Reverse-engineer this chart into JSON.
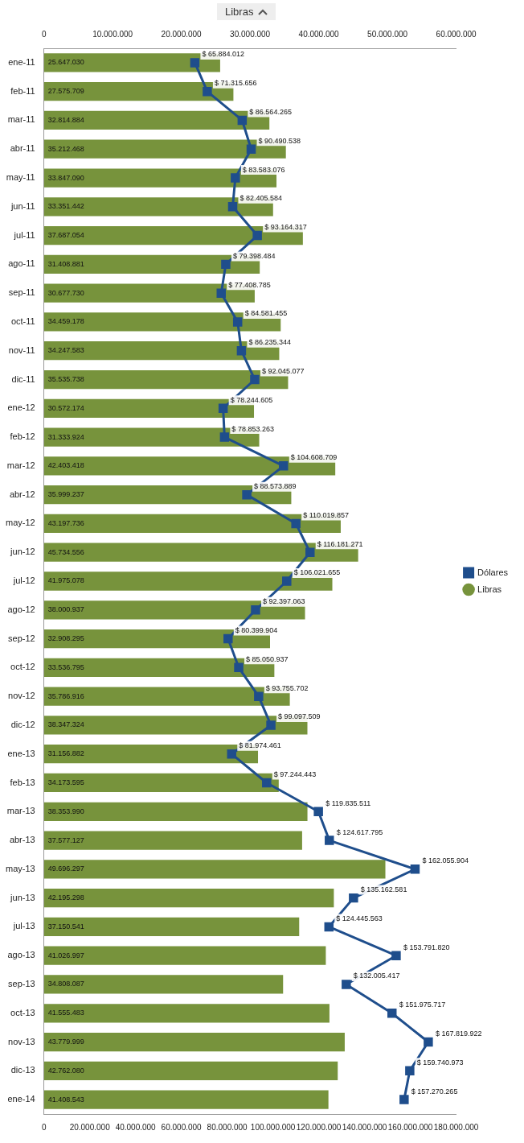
{
  "chart_data": {
    "type": "bar",
    "orientation": "horizontal",
    "annotations": [
      "Libras"
    ],
    "categories": [
      "ene-11",
      "feb-11",
      "mar-11",
      "abr-11",
      "may-11",
      "jun-11",
      "jul-11",
      "ago-11",
      "sep-11",
      "oct-11",
      "nov-11",
      "dic-11",
      "ene-12",
      "feb-12",
      "mar-12",
      "abr-12",
      "may-12",
      "jun-12",
      "jul-12",
      "ago-12",
      "sep-12",
      "oct-12",
      "nov-12",
      "dic-12",
      "ene-13",
      "feb-13",
      "mar-13",
      "abr-13",
      "may-13",
      "jun-13",
      "jul-13",
      "ago-13",
      "sep-13",
      "oct-13",
      "nov-13",
      "dic-13",
      "ene-14"
    ],
    "series": [
      {
        "name": "Libras",
        "axis": "x2",
        "color": "#77933c",
        "values": [
          25647030,
          27575709,
          32814884,
          35212468,
          33847090,
          33351442,
          37687054,
          31408881,
          30677730,
          34459178,
          34247583,
          35535738,
          30572174,
          31333924,
          42403418,
          35999237,
          43197736,
          45734556,
          41975078,
          38000937,
          32908295,
          33536795,
          35786916,
          38347324,
          31156882,
          34173595,
          38353990,
          37577127,
          49696297,
          42195298,
          37150541,
          41026997,
          34808087,
          41555483,
          43779999,
          42762080,
          41408543
        ],
        "value_labels": [
          "25.647.030",
          "27.575.709",
          "32.814.884",
          "35.212.468",
          "33.847.090",
          "33.351.442",
          "37.687.054",
          "31.408.881",
          "30.677.730",
          "34.459.178",
          "34.247.583",
          "35.535.738",
          "30.572.174",
          "31.333.924",
          "42.403.418",
          "35.999.237",
          "43.197.736",
          "45.734.556",
          "41.975.078",
          "38.000.937",
          "32.908.295",
          "33.536.795",
          "35.786.916",
          "38.347.324",
          "31.156.882",
          "34.173.595",
          "38.353.990",
          "37.577.127",
          "49.696.297",
          "42.195.298",
          "37.150.541",
          "41.026.997",
          "34.808.087",
          "41.555.483",
          "43.779.999",
          "42.762.080",
          "41.408.543"
        ]
      },
      {
        "name": "Dólares",
        "type": "line",
        "color": "#1f4e8c",
        "marker": "square",
        "line_style": "solid",
        "values": [
          65884012,
          71315656,
          86564265,
          90490538,
          83583076,
          82405584,
          93164317,
          79398484,
          77408785,
          84581455,
          86235344,
          92045077,
          78244605,
          78853263,
          104608709,
          88573889,
          110019857,
          116181271,
          106021655,
          92397063,
          80399904,
          85050937,
          93755702,
          99097509,
          81974461,
          97244443,
          119835511,
          124617795,
          162055904,
          135162581,
          124445563,
          153791820,
          132005417,
          151975717,
          167819922,
          159740973,
          157270265
        ],
        "value_labels": [
          "$ 65.884.012",
          "$ 71.315.656",
          "$ 86.564.265",
          "$ 90.490.538",
          "$ 83.583.076",
          "$ 82.405.584",
          "$ 93.164.317",
          "$ 79.398.484",
          "$ 77.408.785",
          "$ 84.581.455",
          "$ 86.235.344",
          "$ 92.045.077",
          "$ 78.244.605",
          "$ 78.853.263",
          "$ 104.608.709",
          "$ 88.573.889",
          "$ 110.019.857",
          "$ 116.181.271",
          "$ 106.021.655",
          "$ 92.397.063",
          "$ 80.399.904",
          "$ 85.050.937",
          "$ 93.755.702",
          "$ 99.097.509",
          "$ 81.974.461",
          "$ 97.244.443",
          "$ 119.835.511",
          "$ 124.617.795",
          "$ 162.055.904",
          "$ 135.162.581",
          "$ 124.445.563",
          "$ 153.791.820",
          "$ 132.005.417",
          "$ 151.975.717",
          "$ 167.819.922",
          "$ 159.740.973",
          "$ 157.270.265"
        ]
      }
    ],
    "x2lim": [
      0,
      60000000
    ],
    "x2ticks": [
      {
        "value": 0,
        "label": "0"
      },
      {
        "value": 10000000,
        "label": "10.000.000"
      },
      {
        "value": 20000000,
        "label": "20.000.000"
      },
      {
        "value": 30000000,
        "label": "30.000.000"
      },
      {
        "value": 40000000,
        "label": "40.000.000"
      },
      {
        "value": 50000000,
        "label": "50.000.000"
      },
      {
        "value": 60000000,
        "label": "60.000.000"
      }
    ],
    "xlim": [
      0,
      180000000
    ],
    "xticks": [
      {
        "value": 0,
        "label": "0"
      },
      {
        "value": 20000000,
        "label": "20.000.000"
      },
      {
        "value": 40000000,
        "label": "40.000.000"
      },
      {
        "value": 60000000,
        "label": "60.000.000"
      },
      {
        "value": 80000000,
        "label": "80.000.000"
      },
      {
        "value": 100000000,
        "label": "100.000.000"
      },
      {
        "value": 120000000,
        "label": "120.000.000"
      },
      {
        "value": 140000000,
        "label": "140.000.000"
      },
      {
        "value": 160000000,
        "label": "160.000.000"
      },
      {
        "value": 180000000,
        "label": "180.000.000"
      }
    ],
    "grid": false,
    "legend": "right"
  }
}
